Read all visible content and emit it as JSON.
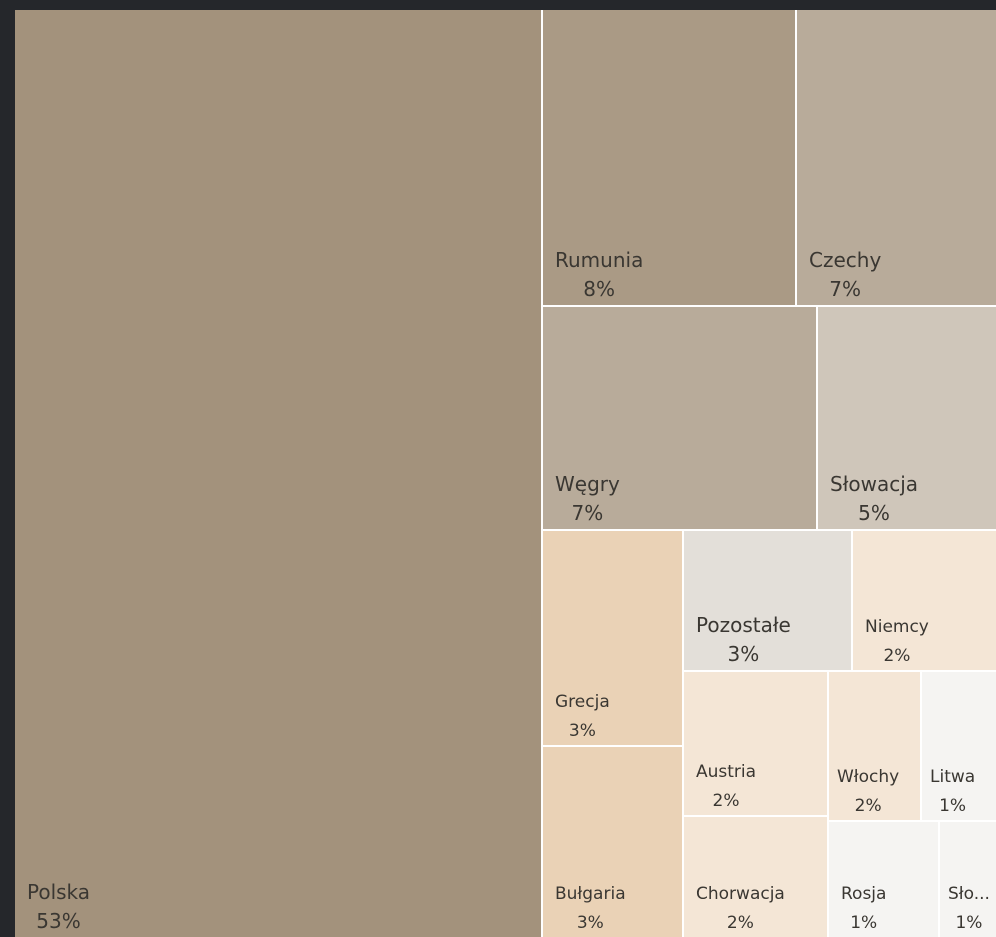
{
  "chart_data": {
    "type": "treemap",
    "categories": [
      "Polska",
      "Rumunia",
      "Czechy",
      "Węgry",
      "Słowacja",
      "Grecja",
      "Bułgaria",
      "Pozostałe",
      "Niemcy",
      "Austria",
      "Chorwacja",
      "Włochy",
      "Litwa",
      "Rosja",
      "Sło..."
    ],
    "values": [
      53,
      8,
      7,
      7,
      5,
      3,
      3,
      3,
      2,
      2,
      2,
      2,
      1,
      1,
      1
    ],
    "value_labels": [
      "53%",
      "8%",
      "7%",
      "7%",
      "5%",
      "3%",
      "3%",
      "3%",
      "2%",
      "2%",
      "2%",
      "2%",
      "1%",
      "1%",
      "1%"
    ],
    "colors": [
      "#a3927c",
      "#aa9a85",
      "#b8ab9a",
      "#b8ab9a",
      "#cfc6ba",
      "#ead2b6",
      "#ead2b6",
      "#e3dfd9",
      "#f4e6d6",
      "#f4e6d6",
      "#f4e6d6",
      "#f4e6d6",
      "#f5f4f2",
      "#f5f4f2",
      "#f5f4f2"
    ]
  }
}
